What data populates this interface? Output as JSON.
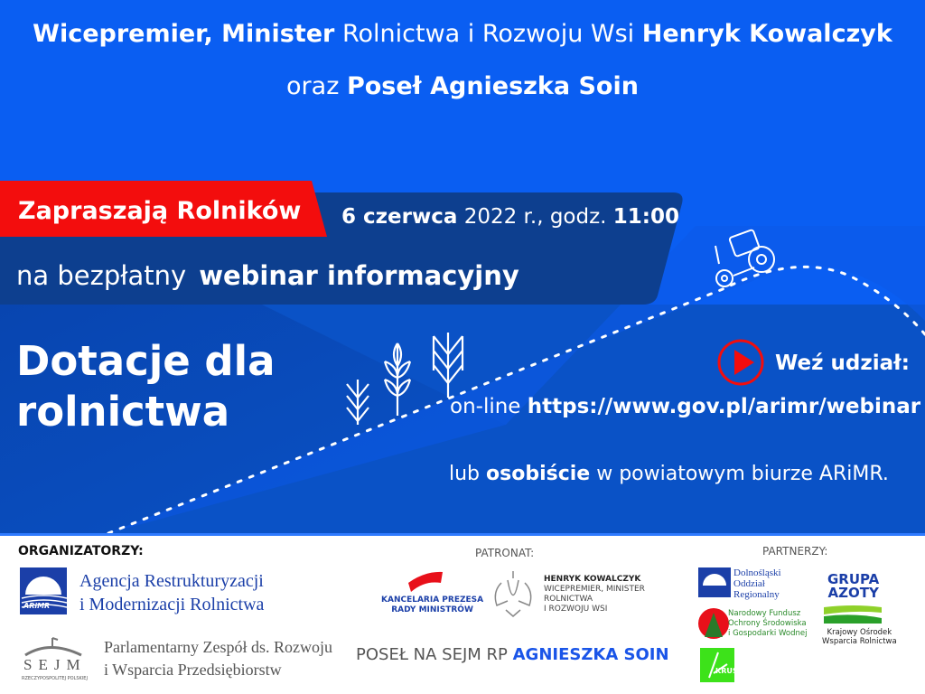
{
  "header": {
    "line1": {
      "bold_a": "Wicepremier, Minister",
      "normal": " Rolnictwa i Rozwoju Wsi ",
      "bold_b": "Henryk Kowalczyk"
    },
    "line2": {
      "normal": "oraz ",
      "bold": "Poseł Agnieszka Soin"
    }
  },
  "banner": {
    "invite_label": "Zapraszają Rolników",
    "date_bold": "6 czerwca",
    "date_normal": " 2022 r., godz. ",
    "time": "11:00",
    "webinar_prefix": "na bezpłatny",
    "webinar_bold": "webinar informacyjny"
  },
  "headline": {
    "line1": "Dotacje dla",
    "line2": "rolnictwa"
  },
  "join": {
    "label": "Weź udział:",
    "online_prefix": "on-line ",
    "url": "https://www.gov.pl/arimr/webinar",
    "inperson_prefix": "lub ",
    "inperson_bold": "osobiście",
    "inperson_suffix": " w powiatowym biurze ARiMR."
  },
  "footer": {
    "organizers_heading": "ORGANIZATORZY:",
    "arimr_line1": "Agencja Restrukturyzacji",
    "arimr_line2": "i Modernizacji Rolnictwa",
    "arimr_logo": "ARiMR",
    "sejm_logo": "SEJM",
    "sejm_sub": "RZECZYPOSPOLITEJ POLSKIEJ",
    "sejm_line1": "Parlamentarny Zespół  ds. Rozwoju",
    "sejm_line2": "i Wsparcia Przedsiębiorstw",
    "patronage_heading": "PATRONAT:",
    "kprm_line1": "KANCELARIA PREZESA",
    "kprm_line2": "RADY MINISTRÓW",
    "hk_name": "HENRYK KOWALCZYK",
    "hk_line1": "WICEPREMIER, MINISTER",
    "hk_line2": "ROLNICTWA",
    "hk_line3": "I ROZWOJU WSI",
    "posel_prefix": "POSEŁ NA SEJM RP ",
    "posel_name": "AGNIESZKA SOIN",
    "partners_heading": "PARTNERZY:",
    "dol_line1": "Dolnośląski",
    "dol_line2": "Oddział",
    "dol_line3": "Regionalny",
    "azoty_line1": "GRUPA",
    "azoty_line2": "AZOTY",
    "nfos_line1": "Narodowy Fundusz",
    "nfos_line2": "Ochrony Środowiska",
    "nfos_line3": "i Gospodarki Wodnej",
    "kowr_line1": "Krajowy Ośrodek",
    "kowr_line2": "Wsparcia Rolnictwa",
    "krus_logo": "KRUS"
  },
  "colors": {
    "top_blue": "#0a5ef2",
    "navy_band": "#0d3f8f",
    "lower_blue": "#0a52c6",
    "red": "#f30d0d",
    "link_blue": "#1a55e8"
  },
  "icons": [
    "tractor-icon",
    "wheat-icon",
    "play-icon",
    "eagle-icon",
    "kprm-flag-icon"
  ]
}
